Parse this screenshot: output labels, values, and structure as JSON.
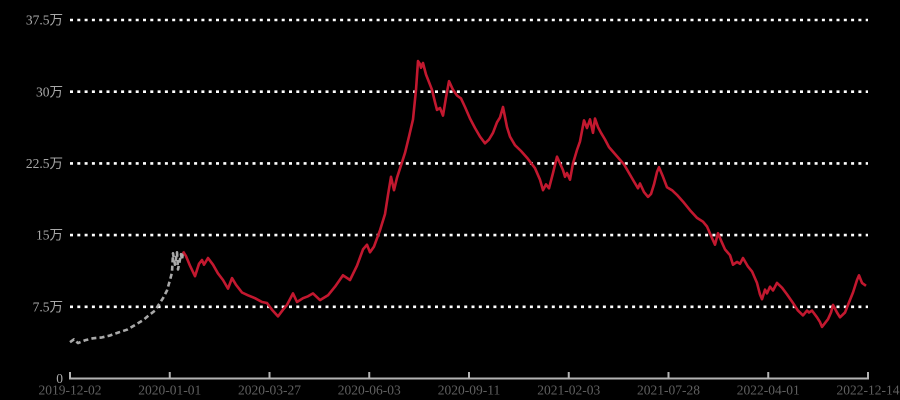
{
  "chart": {
    "colors": {
      "background": "#000000",
      "grid_dotted": "#ffffff",
      "axis_line": "#b3b3b3",
      "y_label": "#a8a8a8",
      "x_label": "#606060",
      "series_early": "#a9a9a9",
      "series_main": "#c2182f"
    },
    "chart_data": {
      "type": "line",
      "title": "",
      "xlabel": "",
      "ylabel": "",
      "unit_note": "y values in 万 (10,000s)",
      "legend": "none",
      "grid": "horizontal dotted white lines",
      "y_axis": {
        "tick_labels": [
          "0",
          "7.5万",
          "15万",
          "22.5万",
          "30万",
          "37.5万"
        ],
        "tick_values_wan": [
          0,
          7.5,
          15,
          22.5,
          30,
          37.5
        ],
        "min_wan": 0,
        "max_wan": 37.5
      },
      "x_axis": {
        "tick_labels": [
          "2019-12-02",
          "2020-01-01",
          "2020-03-27",
          "2020-06-03",
          "2020-09-11",
          "2021-02-03",
          "2021-07-28",
          "2022-04-01",
          "2022-12-14"
        ],
        "spacing": "equal category spacing"
      },
      "series": [
        {
          "name": "early-segment-dashed-gray",
          "style": "dashed",
          "color": "#a9a9a9",
          "points_frac_wan": [
            [
              0.0,
              3.8
            ],
            [
              0.005,
              4.1
            ],
            [
              0.01,
              3.7
            ],
            [
              0.0188,
              4.0
            ],
            [
              0.0288,
              4.2
            ],
            [
              0.0401,
              4.3
            ],
            [
              0.0501,
              4.5
            ],
            [
              0.0602,
              4.8
            ],
            [
              0.0714,
              5.1
            ],
            [
              0.0815,
              5.6
            ],
            [
              0.0915,
              6.1
            ],
            [
              0.1003,
              6.7
            ],
            [
              0.1065,
              7.1
            ],
            [
              0.1103,
              7.6
            ],
            [
              0.1165,
              8.4
            ],
            [
              0.1216,
              9.2
            ],
            [
              0.1253,
              10.3
            ],
            [
              0.1278,
              11.1
            ],
            [
              0.1291,
              13.1
            ],
            [
              0.1316,
              11.9
            ],
            [
              0.1341,
              13.2
            ],
            [
              0.1353,
              11.4
            ],
            [
              0.1391,
              13.0
            ],
            [
              0.1403,
              12.4
            ],
            [
              0.1416,
              13.3
            ]
          ]
        },
        {
          "name": "main-segment-solid-red",
          "style": "solid",
          "color": "#c2182f",
          "points_frac_wan": [
            [
              0.1416,
              13.3
            ],
            [
              0.1454,
              12.8
            ],
            [
              0.1504,
              11.8
            ],
            [
              0.1566,
              10.7
            ],
            [
              0.1617,
              12.0
            ],
            [
              0.1654,
              12.4
            ],
            [
              0.1679,
              11.9
            ],
            [
              0.1729,
              12.6
            ],
            [
              0.1792,
              11.9
            ],
            [
              0.1854,
              11.0
            ],
            [
              0.1917,
              10.3
            ],
            [
              0.198,
              9.4
            ],
            [
              0.203,
              10.5
            ],
            [
              0.208,
              9.8
            ],
            [
              0.2155,
              9.0
            ],
            [
              0.2231,
              8.7
            ],
            [
              0.2318,
              8.4
            ],
            [
              0.2406,
              8.0
            ],
            [
              0.2469,
              7.9
            ],
            [
              0.2531,
              7.2
            ],
            [
              0.2607,
              6.5
            ],
            [
              0.2669,
              7.2
            ],
            [
              0.2719,
              7.7
            ],
            [
              0.2794,
              8.9
            ],
            [
              0.2845,
              8.0
            ],
            [
              0.292,
              8.4
            ],
            [
              0.2982,
              8.6
            ],
            [
              0.3045,
              8.9
            ],
            [
              0.3133,
              8.2
            ],
            [
              0.3233,
              8.7
            ],
            [
              0.3321,
              9.6
            ],
            [
              0.3421,
              10.8
            ],
            [
              0.3509,
              10.3
            ],
            [
              0.3597,
              11.8
            ],
            [
              0.3672,
              13.5
            ],
            [
              0.3722,
              14.0
            ],
            [
              0.3759,
              13.2
            ],
            [
              0.381,
              13.8
            ],
            [
              0.3885,
              15.5
            ],
            [
              0.3947,
              17.2
            ],
            [
              0.3985,
              19.2
            ],
            [
              0.4023,
              21.1
            ],
            [
              0.406,
              19.7
            ],
            [
              0.4098,
              21.0
            ],
            [
              0.4148,
              22.3
            ],
            [
              0.4198,
              23.6
            ],
            [
              0.4248,
              25.3
            ],
            [
              0.4298,
              27.1
            ],
            [
              0.4336,
              30.2
            ],
            [
              0.4361,
              33.2
            ],
            [
              0.4386,
              32.9
            ],
            [
              0.4398,
              32.5
            ],
            [
              0.4423,
              33.0
            ],
            [
              0.4461,
              31.8
            ],
            [
              0.4499,
              31.0
            ],
            [
              0.4536,
              30.2
            ],
            [
              0.4574,
              28.9
            ],
            [
              0.4599,
              28.1
            ],
            [
              0.4637,
              28.3
            ],
            [
              0.4674,
              27.5
            ],
            [
              0.4712,
              29.4
            ],
            [
              0.4749,
              31.1
            ],
            [
              0.4799,
              30.2
            ],
            [
              0.485,
              29.6
            ],
            [
              0.49,
              29.3
            ],
            [
              0.495,
              28.4
            ],
            [
              0.5013,
              27.2
            ],
            [
              0.5075,
              26.2
            ],
            [
              0.5138,
              25.3
            ],
            [
              0.5201,
              24.6
            ],
            [
              0.5251,
              25.0
            ],
            [
              0.5301,
              25.7
            ],
            [
              0.5351,
              26.8
            ],
            [
              0.5388,
              27.3
            ],
            [
              0.5426,
              28.4
            ],
            [
              0.5476,
              26.3
            ],
            [
              0.5514,
              25.3
            ],
            [
              0.5576,
              24.4
            ],
            [
              0.5652,
              23.8
            ],
            [
              0.5727,
              23.1
            ],
            [
              0.5827,
              22.0
            ],
            [
              0.589,
              20.8
            ],
            [
              0.5927,
              19.7
            ],
            [
              0.5965,
              20.3
            ],
            [
              0.6003,
              19.9
            ],
            [
              0.6053,
              21.5
            ],
            [
              0.6103,
              23.2
            ],
            [
              0.614,
              22.5
            ],
            [
              0.6178,
              21.8
            ],
            [
              0.6203,
              21.1
            ],
            [
              0.6228,
              21.5
            ],
            [
              0.6266,
              20.8
            ],
            [
              0.6303,
              22.5
            ],
            [
              0.6353,
              23.9
            ],
            [
              0.6391,
              24.8
            ],
            [
              0.6441,
              27.0
            ],
            [
              0.6479,
              26.2
            ],
            [
              0.6516,
              27.1
            ],
            [
              0.6554,
              25.7
            ],
            [
              0.6579,
              27.2
            ],
            [
              0.6617,
              26.3
            ],
            [
              0.6654,
              25.7
            ],
            [
              0.6704,
              25.0
            ],
            [
              0.6754,
              24.2
            ],
            [
              0.6817,
              23.6
            ],
            [
              0.688,
              23.0
            ],
            [
              0.6942,
              22.4
            ],
            [
              0.7005,
              21.5
            ],
            [
              0.7068,
              20.6
            ],
            [
              0.7118,
              19.9
            ],
            [
              0.7143,
              20.4
            ],
            [
              0.7193,
              19.5
            ],
            [
              0.7243,
              19.0
            ],
            [
              0.7281,
              19.3
            ],
            [
              0.7318,
              20.3
            ],
            [
              0.7356,
              21.6
            ],
            [
              0.7381,
              22.1
            ],
            [
              0.7431,
              21.1
            ],
            [
              0.7481,
              20.0
            ],
            [
              0.7544,
              19.7
            ],
            [
              0.7607,
              19.2
            ],
            [
              0.7682,
              18.5
            ],
            [
              0.7769,
              17.6
            ],
            [
              0.7857,
              16.8
            ],
            [
              0.7932,
              16.4
            ],
            [
              0.7982,
              15.9
            ],
            [
              0.8045,
              14.7
            ],
            [
              0.8083,
              14.0
            ],
            [
              0.812,
              15.2
            ],
            [
              0.817,
              14.2
            ],
            [
              0.8208,
              13.5
            ],
            [
              0.8271,
              12.9
            ],
            [
              0.8308,
              11.9
            ],
            [
              0.8358,
              12.2
            ],
            [
              0.8396,
              12.0
            ],
            [
              0.8434,
              12.6
            ],
            [
              0.8496,
              11.7
            ],
            [
              0.8546,
              11.2
            ],
            [
              0.8609,
              10.0
            ],
            [
              0.8647,
              8.8
            ],
            [
              0.8672,
              8.3
            ],
            [
              0.8709,
              9.3
            ],
            [
              0.8734,
              8.9
            ],
            [
              0.8772,
              9.6
            ],
            [
              0.881,
              9.2
            ],
            [
              0.886,
              10.0
            ],
            [
              0.8922,
              9.5
            ],
            [
              0.8985,
              8.8
            ],
            [
              0.906,
              7.9
            ],
            [
              0.9123,
              7.1
            ],
            [
              0.9185,
              6.6
            ],
            [
              0.9236,
              7.1
            ],
            [
              0.9261,
              6.9
            ],
            [
              0.9298,
              7.1
            ],
            [
              0.9361,
              6.4
            ],
            [
              0.9398,
              5.9
            ],
            [
              0.9424,
              5.4
            ],
            [
              0.9461,
              5.8
            ],
            [
              0.9499,
              6.2
            ],
            [
              0.9536,
              6.9
            ],
            [
              0.9561,
              7.7
            ],
            [
              0.9612,
              6.9
            ],
            [
              0.9649,
              6.4
            ],
            [
              0.9712,
              6.9
            ],
            [
              0.9749,
              7.7
            ],
            [
              0.9812,
              9.0
            ],
            [
              0.9862,
              10.3
            ],
            [
              0.9887,
              10.8
            ],
            [
              0.9925,
              10.0
            ],
            [
              0.9975,
              9.7
            ]
          ]
        }
      ]
    }
  }
}
